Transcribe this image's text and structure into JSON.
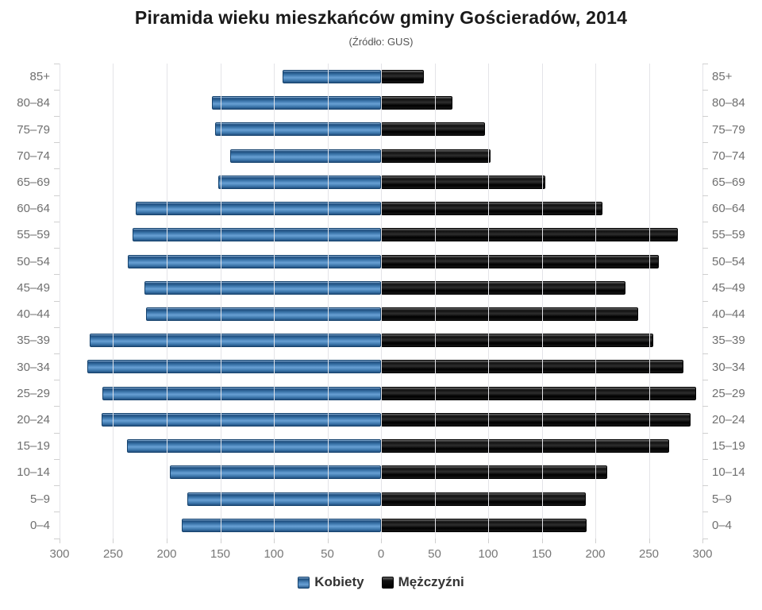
{
  "title": "Piramida wieku mieszkańców gminy Gościeradów, 2014",
  "subtitle": "(Źródło: GUS)",
  "legend": {
    "female_label": "Kobiety",
    "male_label": "Mężczyźni"
  },
  "colors": {
    "female": "#4a82b8",
    "male": "#111111",
    "gridline": "#e4e4e8",
    "label_gray": "#6f6f6f"
  },
  "chart_data": {
    "type": "bar",
    "subtype": "population-pyramid",
    "title": "Piramida wieku mieszkańców gminy Gościeradów, 2014",
    "subtitle": "(Źródło: GUS)",
    "categories": [
      "85+",
      "80–84",
      "75–79",
      "70–74",
      "65–69",
      "60–64",
      "55–59",
      "50–54",
      "45–49",
      "40–44",
      "35–39",
      "30–34",
      "25–29",
      "20–24",
      "15–19",
      "10–14",
      "5–9",
      "0–4"
    ],
    "series": [
      {
        "name": "Kobiety",
        "side": "left",
        "color": "#4a82b8",
        "values": [
          92,
          158,
          155,
          141,
          152,
          229,
          232,
          236,
          221,
          219,
          272,
          274,
          260,
          261,
          237,
          197,
          181,
          186
        ]
      },
      {
        "name": "Mężczyźni",
        "side": "right",
        "color": "#111111",
        "values": [
          40,
          67,
          97,
          102,
          153,
          207,
          277,
          259,
          228,
          240,
          254,
          282,
          294,
          289,
          269,
          211,
          191,
          192
        ]
      }
    ],
    "x_axis": {
      "max_each_side": 300,
      "tick_interval": 50,
      "tick_labels": [
        "300",
        "250",
        "200",
        "150",
        "100",
        "50",
        "0",
        "50",
        "100",
        "150",
        "200",
        "250",
        "300"
      ]
    },
    "grid": true,
    "legend_position": "bottom"
  }
}
